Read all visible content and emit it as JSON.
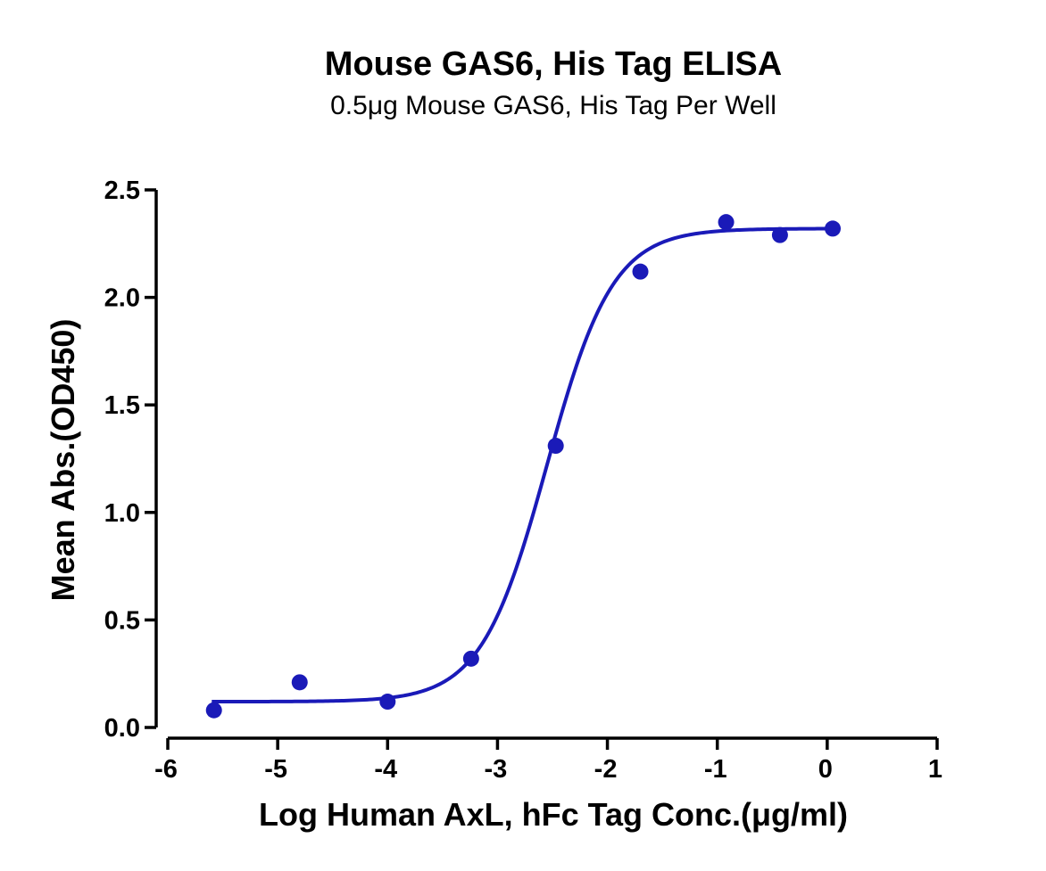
{
  "chart_data": {
    "type": "scatter",
    "title": "Mouse GAS6, His Tag ELISA",
    "subtitle": "0.5μg Mouse GAS6, His Tag Per Well",
    "xlabel": "Log Human AxL, hFc Tag Conc.(μg/ml)",
    "ylabel": "Mean Abs.(OD450)",
    "xlim": [
      -6,
      1
    ],
    "ylim": [
      0,
      2.5
    ],
    "xticks": [
      -6,
      -5,
      -4,
      -3,
      -2,
      -1,
      0,
      1
    ],
    "yticks": [
      0.0,
      0.5,
      1.0,
      1.5,
      2.0,
      2.5
    ],
    "xtick_labels": [
      "-6",
      "-5",
      "-4",
      "-3",
      "-2",
      "-1",
      "0",
      "1"
    ],
    "ytick_labels": [
      "0.0",
      "0.5",
      "1.0",
      "1.5",
      "2.0",
      "2.5"
    ],
    "grid": false,
    "colors": {
      "series": "#1a1ab8"
    },
    "series": [
      {
        "points": [
          {
            "x": -5.58,
            "y": 0.08
          },
          {
            "x": -4.8,
            "y": 0.21
          },
          {
            "x": -4.0,
            "y": 0.12
          },
          {
            "x": -3.24,
            "y": 0.32
          },
          {
            "x": -2.47,
            "y": 1.31
          },
          {
            "x": -1.7,
            "y": 2.12
          },
          {
            "x": -0.92,
            "y": 2.35
          },
          {
            "x": -0.43,
            "y": 2.29
          },
          {
            "x": 0.05,
            "y": 2.32
          }
        ],
        "fit": {
          "model": "4PL",
          "bottom": 0.12,
          "top": 2.32,
          "logEC50": -2.55,
          "hill": 1.45,
          "x_range": [
            -5.6,
            0.05
          ]
        }
      }
    ]
  }
}
